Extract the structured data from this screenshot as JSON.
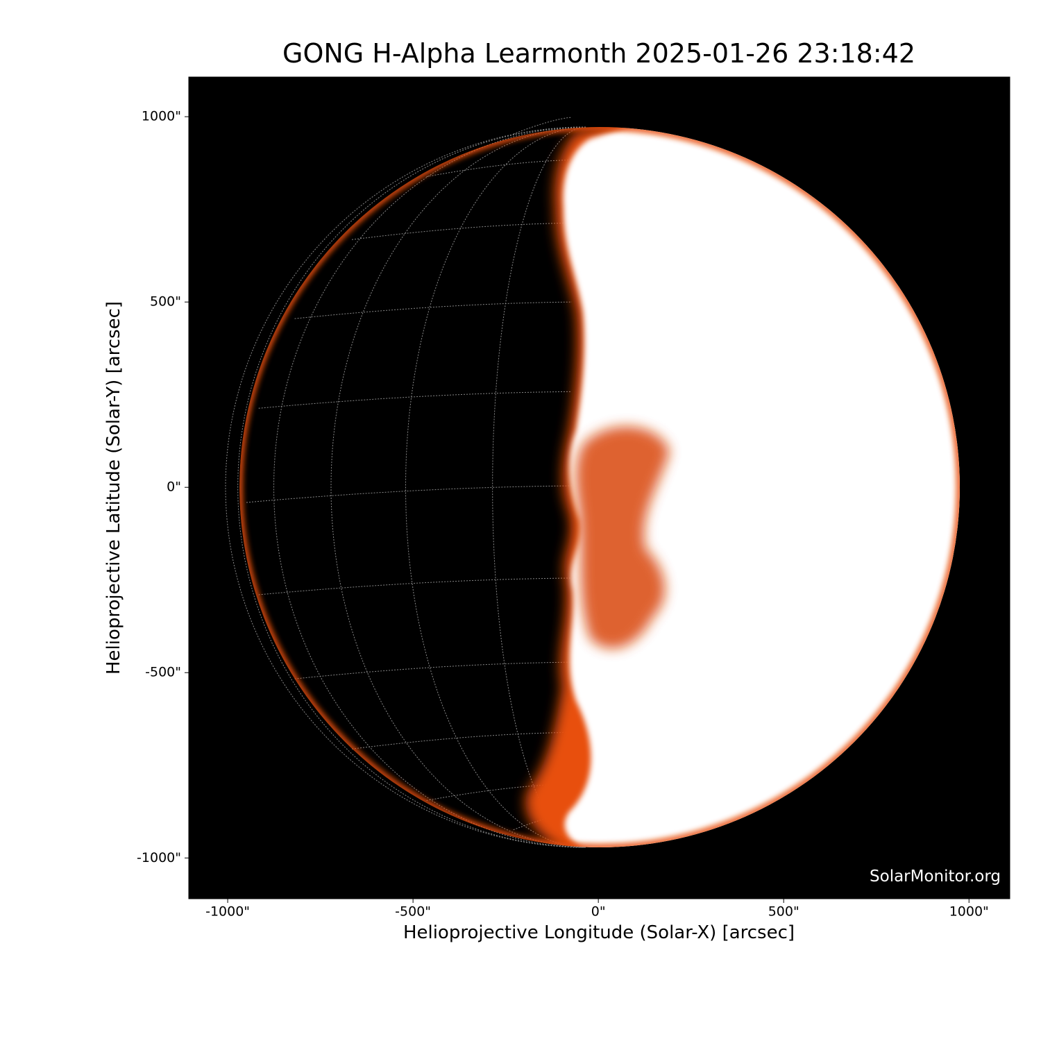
{
  "chart_data": {
    "type": "image",
    "title": "GONG H-Alpha Learmonth 2025-01-26 23:18:42",
    "x_label": "Helioprojective Longitude (Solar-X) [arcsec]",
    "y_label": "Helioprojective Latitude (Solar-Y) [arcsec]",
    "annotation": "SolarMonitor.org",
    "xlim": [
      -1105,
      1110
    ],
    "ylim": [
      -1110,
      1107
    ],
    "xticks": [
      {
        "value": -1000,
        "label": "-1000\""
      },
      {
        "value": -500,
        "label": "-500\""
      },
      {
        "value": 0,
        "label": "0\""
      },
      {
        "value": 500,
        "label": "500\""
      },
      {
        "value": 1000,
        "label": "1000\""
      }
    ],
    "yticks": [
      {
        "value": -1000,
        "label": "-1000\""
      },
      {
        "value": -500,
        "label": "-500\""
      },
      {
        "value": 0,
        "label": "0\""
      },
      {
        "value": 500,
        "label": "500\""
      },
      {
        "value": 1000,
        "label": "1000\""
      }
    ]
  }
}
